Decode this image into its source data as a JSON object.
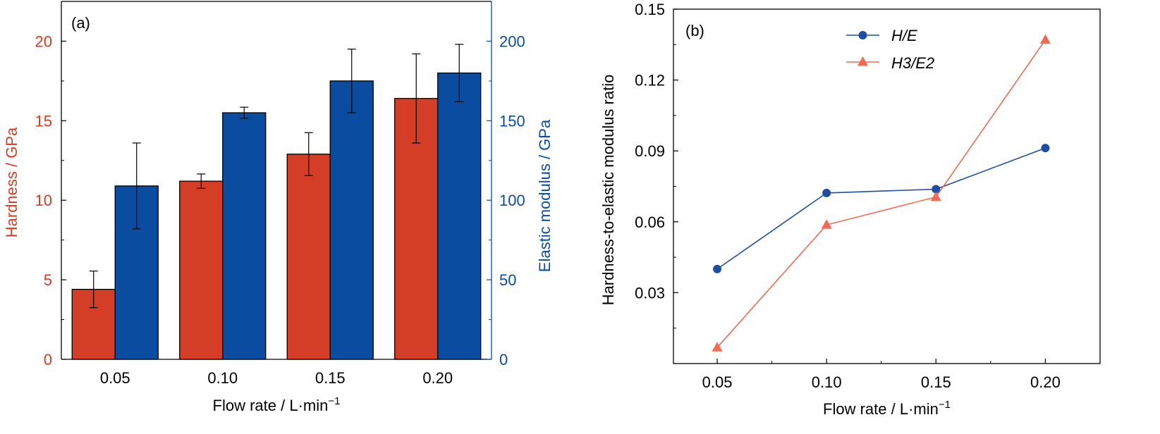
{
  "colors": {
    "hardness": "#d43d26",
    "modulus": "#0a4ca0",
    "axis": "#000000",
    "he_line": "#1f4ea1",
    "h3e2_line": "#ef6b56"
  },
  "chart_data": [
    {
      "panel_label": "(a)",
      "type": "bar",
      "categories": [
        "0.05",
        "0.10",
        "0.15",
        "0.20"
      ],
      "xlabel": "Flow rate / L·min",
      "xlabel_sup": "−1",
      "series": [
        {
          "axis": "left",
          "values": [
            4.4,
            11.2,
            12.9,
            16.4
          ],
          "error": [
            1.15,
            0.45,
            1.35,
            2.8
          ]
        },
        {
          "axis": "right",
          "values": [
            109,
            155,
            175,
            180
          ],
          "error": [
            27,
            3.5,
            20,
            18
          ]
        }
      ],
      "ylabel_left": "Hardness / GPa",
      "ylim_left": [
        0,
        22.5
      ],
      "yticks_left": [
        0,
        5,
        10,
        15,
        20
      ],
      "ylabel_right": "Elastic modulus / GPa",
      "ylim_right": [
        0,
        225
      ],
      "yticks_right": [
        0,
        50,
        100,
        150,
        200
      ]
    },
    {
      "panel_label": "(b)",
      "type": "line",
      "x": [
        0.05,
        0.1,
        0.15,
        0.2
      ],
      "xticks": [
        "0.05",
        "0.10",
        "0.15",
        "0.20"
      ],
      "xlim": [
        0.03,
        0.225
      ],
      "xlabel": "Flow rate / L·min",
      "xlabel_sup": "−1",
      "ylabel": "Hardness-to-elastic modulus ratio",
      "ylim": [
        0.0,
        0.15
      ],
      "yticks": [
        "0.03",
        "0.06",
        "0.09",
        "0.12",
        "0.15"
      ],
      "legend_position": "top-center",
      "series": [
        {
          "name": "H/E",
          "marker": "circle",
          "values": [
            0.04,
            0.0722,
            0.0738,
            0.0912
          ]
        },
        {
          "name": "H3/E2",
          "marker": "triangle",
          "values": [
            0.0068,
            0.0587,
            0.0705,
            0.137
          ]
        }
      ]
    }
  ]
}
